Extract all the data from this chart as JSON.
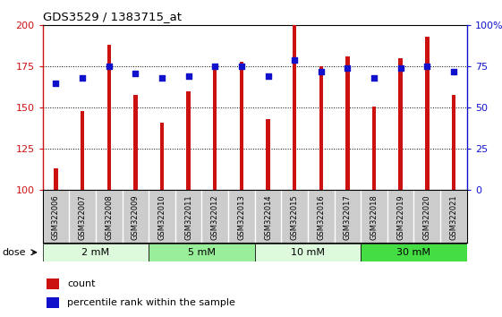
{
  "title": "GDS3529 / 1383715_at",
  "samples": [
    "GSM322006",
    "GSM322007",
    "GSM322008",
    "GSM322009",
    "GSM322010",
    "GSM322011",
    "GSM322012",
    "GSM322013",
    "GSM322014",
    "GSM322015",
    "GSM322016",
    "GSM322017",
    "GSM322018",
    "GSM322019",
    "GSM322020",
    "GSM322021"
  ],
  "counts": [
    113,
    148,
    188,
    158,
    141,
    160,
    175,
    178,
    143,
    200,
    175,
    181,
    151,
    180,
    193,
    158
  ],
  "percentiles": [
    65,
    68,
    75,
    71,
    68,
    69,
    75,
    75,
    69,
    79,
    72,
    74,
    68,
    74,
    75,
    72
  ],
  "ylim_left": [
    100,
    200
  ],
  "ylim_right": [
    0,
    100
  ],
  "bar_color": "#cc1111",
  "dot_color": "#1111cc",
  "groups": [
    {
      "label": "2 mM",
      "start": 0,
      "end": 3,
      "color": "#ddfadd"
    },
    {
      "label": "5 mM",
      "start": 4,
      "end": 7,
      "color": "#99ee99"
    },
    {
      "label": "10 mM",
      "start": 8,
      "end": 11,
      "color": "#ddfadd"
    },
    {
      "label": "30 mM",
      "start": 12,
      "end": 15,
      "color": "#44dd44"
    }
  ],
  "bar_width": 0.15,
  "legend_count_label": "count",
  "legend_percentile_label": "percentile rank within the sample",
  "xtick_bg": "#cccccc",
  "plot_bg": "#ffffff"
}
